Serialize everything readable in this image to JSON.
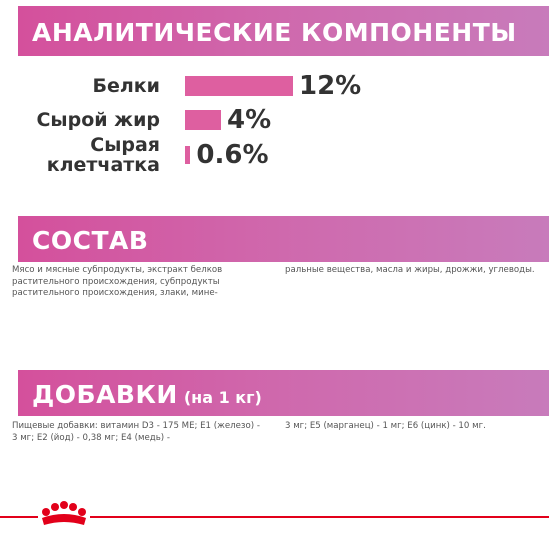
{
  "analysis": {
    "title": "АНАЛИТИЧЕСКИЕ КОМПОНЕНТЫ",
    "items": [
      {
        "label": "Белки",
        "value": 12,
        "value_label": "12%"
      },
      {
        "label": "Сырой жир",
        "value": 4,
        "value_label": "4%"
      },
      {
        "label": "Сырая клетчатка",
        "value": 0.6,
        "value_label": "0.6%"
      }
    ]
  },
  "composition": {
    "title": "СОСТАВ",
    "columns": [
      "Мясо и мясные субпродукты, экстракт белков растительного происхождения, субпродукты растительного происхождения, злаки, мине-",
      "ральные вещества, масла и жиры, дрожжи, углеводы."
    ]
  },
  "additives": {
    "title": "ДОБАВКИ",
    "subtitle": "(на 1 кг)",
    "columns": [
      "Пищевые добавки: витамин D3 - 175 МЕ; Е1 (железо) - 3 мг; Е2 (йод) - 0,38 мг; Е4 (медь) -",
      "3 мг; Е5 (марганец) - 1 мг; Е6 (цинк) - 10 мг."
    ]
  }
}
